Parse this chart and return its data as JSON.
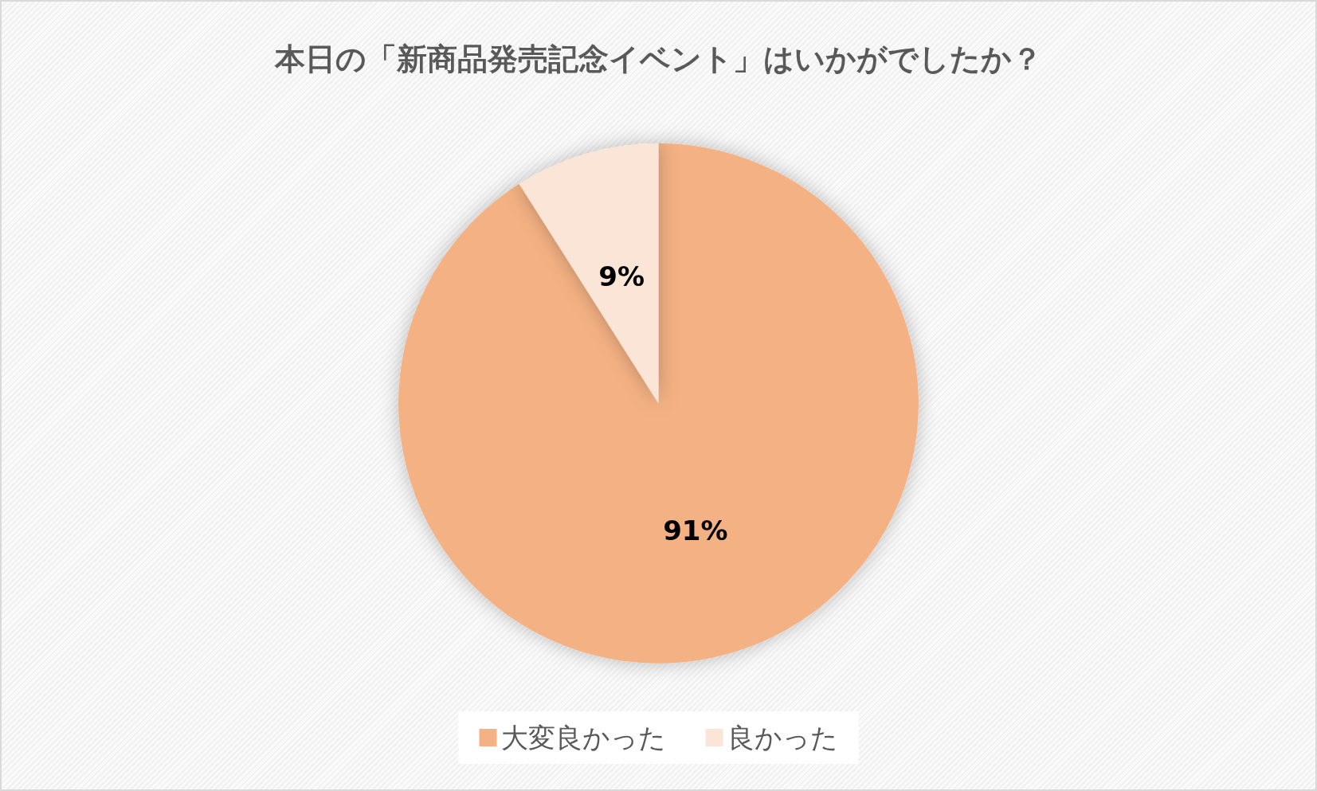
{
  "chart_data": {
    "type": "pie",
    "title": "本日の「新商品発売記念イベント」はいかがでしたか？",
    "categories": [
      "大変良かった",
      "良かった"
    ],
    "values": [
      91,
      9
    ],
    "colors": [
      "#f4b183",
      "#fbe5d6"
    ],
    "value_labels": [
      "91%",
      "9%"
    ],
    "legend": "bottom"
  }
}
